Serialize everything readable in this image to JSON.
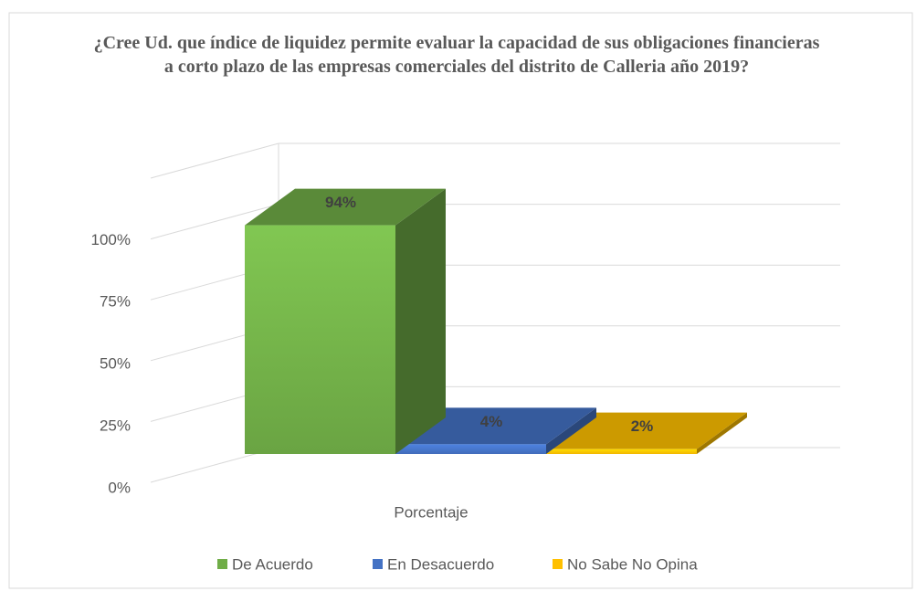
{
  "chart_data": {
    "type": "bar3d",
    "title": "¿Cree Ud. que índice de liquidez permite evaluar la capacidad  de sus obligaciones financieras a corto plazo de las empresas comerciales del distrito de Calleria año 2019?",
    "categories": [
      "Porcentaje"
    ],
    "series": [
      {
        "name": "De Acuerdo",
        "color": "#70ad47",
        "values": [
          94
        ],
        "value_labels": [
          "94%"
        ]
      },
      {
        "name": "En Desacuerdo",
        "color": "#4472c4",
        "values": [
          4
        ],
        "value_labels": [
          "4%"
        ]
      },
      {
        "name": "No Sabe No Opina",
        "color": "#ffc000",
        "values": [
          2
        ],
        "value_labels": [
          "2%"
        ]
      }
    ],
    "ylim": [
      0,
      125
    ],
    "yticks": [
      {
        "value": 0,
        "label": "0%"
      },
      {
        "value": 25,
        "label": "25%"
      },
      {
        "value": 50,
        "label": "50%"
      },
      {
        "value": 75,
        "label": "75%"
      },
      {
        "value": 100,
        "label": "100%"
      }
    ],
    "grid": true,
    "legend": "bottom"
  }
}
